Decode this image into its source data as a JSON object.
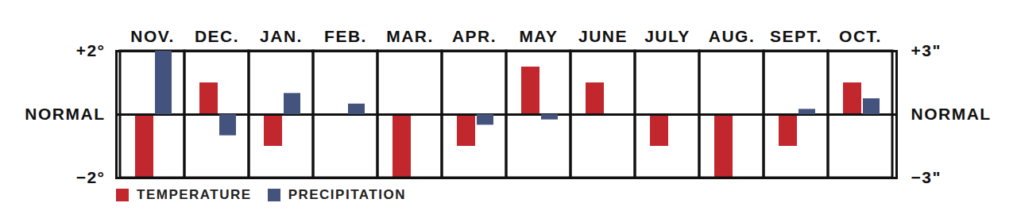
{
  "chart_data": {
    "type": "bar",
    "categories": [
      "NOV.",
      "DEC.",
      "JAN.",
      "FEB.",
      "MAR.",
      "APR.",
      "MAY",
      "JUNE",
      "JULY",
      "AUG.",
      "SEPT.",
      "OCT."
    ],
    "series": [
      {
        "name": "TEMPERATURE",
        "color": "#c1272d",
        "values": [
          -2,
          1,
          -1,
          0,
          -2,
          -1,
          1.5,
          1,
          -1,
          -2,
          -1,
          1
        ]
      },
      {
        "name": "PRECIPITATION",
        "color": "#44537e",
        "axis": "y2",
        "values": [
          3,
          -1,
          1,
          0.5,
          0,
          -0.5,
          -0.25,
          0,
          0,
          0,
          0.25,
          0.75
        ]
      }
    ],
    "ylim": [
      -2,
      2
    ],
    "yticks": [
      {
        "value": 2,
        "label": "+2°"
      },
      {
        "value": 0,
        "label": "NORMAL"
      },
      {
        "value": -2,
        "label": "−2°"
      }
    ],
    "y2lim": [
      -3,
      3
    ],
    "y2ticks": [
      {
        "value": 3,
        "label": "+3\""
      },
      {
        "value": 0,
        "label": "NORMAL"
      },
      {
        "value": -3,
        "label": "−3\""
      }
    ],
    "grid": true,
    "legend": "bottom left"
  }
}
